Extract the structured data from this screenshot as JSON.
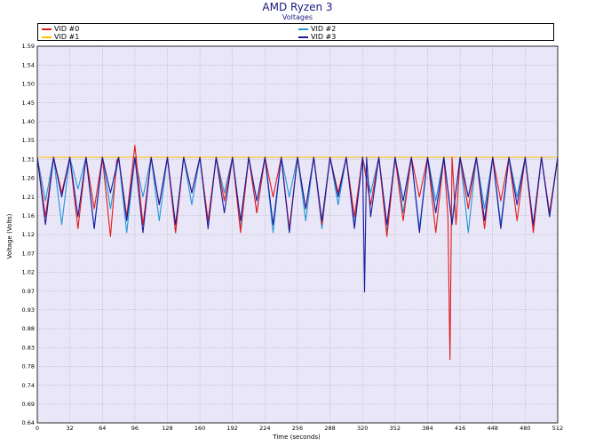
{
  "chart_data": {
    "type": "line",
    "title": "AMD Ryzen 3",
    "subtitle": "Voltages",
    "xlabel": "Time (seconds)",
    "ylabel": "Voltage (Volts)",
    "xlim": [
      0,
      512
    ],
    "ylim": [
      0.64,
      1.59
    ],
    "xticks": [
      0,
      32,
      64,
      96,
      128,
      160,
      192,
      224,
      256,
      288,
      320,
      352,
      384,
      416,
      448,
      480,
      512
    ],
    "yticks": [
      "0.64",
      "0.69",
      "0.74",
      "0.78",
      "0.83",
      "0.88",
      "0.93",
      "0.97",
      "1.02",
      "1.07",
      "1.12",
      "1.16",
      "1.21",
      "1.26",
      "1.31",
      "1.35",
      "1.40",
      "1.45",
      "1.50",
      "1.54",
      "1.59"
    ],
    "grid": true,
    "legend_position": "top",
    "series": [
      {
        "name": "VID #0",
        "color": "#e31a1c",
        "x": [
          0,
          8,
          16,
          24,
          32,
          40,
          48,
          56,
          64,
          72,
          78,
          80,
          88,
          96,
          104,
          112,
          120,
          128,
          136,
          144,
          152,
          160,
          168,
          176,
          184,
          192,
          200,
          208,
          216,
          224,
          232,
          240,
          248,
          256,
          264,
          272,
          280,
          288,
          296,
          304,
          312,
          320,
          328,
          336,
          344,
          352,
          360,
          368,
          376,
          384,
          392,
          400,
          404,
          406,
          408,
          412,
          416,
          424,
          432,
          440,
          448,
          456,
          464,
          472,
          480,
          488,
          496,
          504,
          512
        ],
        "values": [
          1.31,
          1.16,
          1.31,
          1.22,
          1.31,
          1.13,
          1.31,
          1.18,
          1.31,
          1.11,
          1.3,
          1.31,
          1.16,
          1.34,
          1.14,
          1.31,
          1.19,
          1.31,
          1.12,
          1.31,
          1.22,
          1.31,
          1.15,
          1.31,
          1.2,
          1.31,
          1.12,
          1.31,
          1.17,
          1.31,
          1.21,
          1.31,
          1.13,
          1.31,
          1.18,
          1.31,
          1.14,
          1.31,
          1.22,
          1.31,
          1.16,
          1.31,
          1.19,
          1.31,
          1.11,
          1.31,
          1.15,
          1.31,
          1.21,
          1.31,
          1.12,
          1.31,
          1.16,
          0.8,
          1.31,
          1.14,
          1.31,
          1.18,
          1.31,
          1.13,
          1.31,
          1.2,
          1.31,
          1.15,
          1.31,
          1.12,
          1.31,
          1.17,
          1.31
        ]
      },
      {
        "name": "VID #1",
        "color": "#ffc000",
        "x": [
          0,
          512
        ],
        "values": [
          1.31,
          1.31
        ]
      },
      {
        "name": "VID #2",
        "color": "#2596d8",
        "x": [
          0,
          8,
          16,
          24,
          32,
          40,
          48,
          56,
          64,
          72,
          80,
          88,
          96,
          104,
          112,
          120,
          128,
          136,
          144,
          152,
          160,
          168,
          176,
          184,
          192,
          200,
          208,
          216,
          224,
          232,
          240,
          248,
          256,
          264,
          272,
          280,
          288,
          296,
          304,
          312,
          320,
          328,
          336,
          344,
          352,
          360,
          368,
          376,
          384,
          392,
          400,
          408,
          416,
          424,
          432,
          440,
          448,
          456,
          464,
          472,
          480,
          488,
          496,
          504,
          512
        ],
        "values": [
          1.31,
          1.2,
          1.31,
          1.14,
          1.31,
          1.23,
          1.31,
          1.13,
          1.31,
          1.18,
          1.31,
          1.12,
          1.31,
          1.21,
          1.31,
          1.15,
          1.31,
          1.12,
          1.31,
          1.19,
          1.31,
          1.14,
          1.31,
          1.22,
          1.31,
          1.13,
          1.31,
          1.17,
          1.31,
          1.12,
          1.31,
          1.21,
          1.31,
          1.15,
          1.31,
          1.13,
          1.31,
          1.19,
          1.31,
          1.14,
          1.31,
          1.22,
          1.31,
          1.12,
          1.31,
          1.17,
          1.31,
          1.13,
          1.31,
          1.2,
          1.31,
          1.15,
          1.31,
          1.12,
          1.31,
          1.18,
          1.31,
          1.14,
          1.31,
          1.21,
          1.31,
          1.13,
          1.31,
          1.16,
          1.31
        ]
      },
      {
        "name": "VID #3",
        "color": "#1a1a9e",
        "x": [
          0,
          8,
          16,
          24,
          32,
          40,
          48,
          56,
          64,
          72,
          80,
          88,
          96,
          104,
          112,
          120,
          128,
          136,
          144,
          152,
          160,
          168,
          176,
          184,
          192,
          200,
          208,
          216,
          224,
          232,
          240,
          248,
          256,
          264,
          272,
          280,
          288,
          296,
          304,
          312,
          320,
          322,
          324,
          328,
          336,
          344,
          352,
          360,
          368,
          376,
          384,
          392,
          400,
          408,
          416,
          424,
          432,
          440,
          448,
          456,
          464,
          472,
          480,
          488,
          496,
          504,
          512
        ],
        "values": [
          1.31,
          1.14,
          1.31,
          1.21,
          1.31,
          1.16,
          1.31,
          1.13,
          1.31,
          1.22,
          1.31,
          1.15,
          1.31,
          1.12,
          1.31,
          1.19,
          1.31,
          1.14,
          1.31,
          1.22,
          1.31,
          1.13,
          1.31,
          1.17,
          1.31,
          1.15,
          1.31,
          1.2,
          1.31,
          1.14,
          1.31,
          1.12,
          1.31,
          1.18,
          1.31,
          1.15,
          1.31,
          1.21,
          1.31,
          1.13,
          1.31,
          0.97,
          1.31,
          1.16,
          1.31,
          1.14,
          1.31,
          1.2,
          1.31,
          1.12,
          1.31,
          1.17,
          1.31,
          1.14,
          1.31,
          1.21,
          1.31,
          1.15,
          1.31,
          1.13,
          1.31,
          1.19,
          1.31,
          1.14,
          1.31,
          1.16,
          1.31
        ]
      }
    ]
  }
}
